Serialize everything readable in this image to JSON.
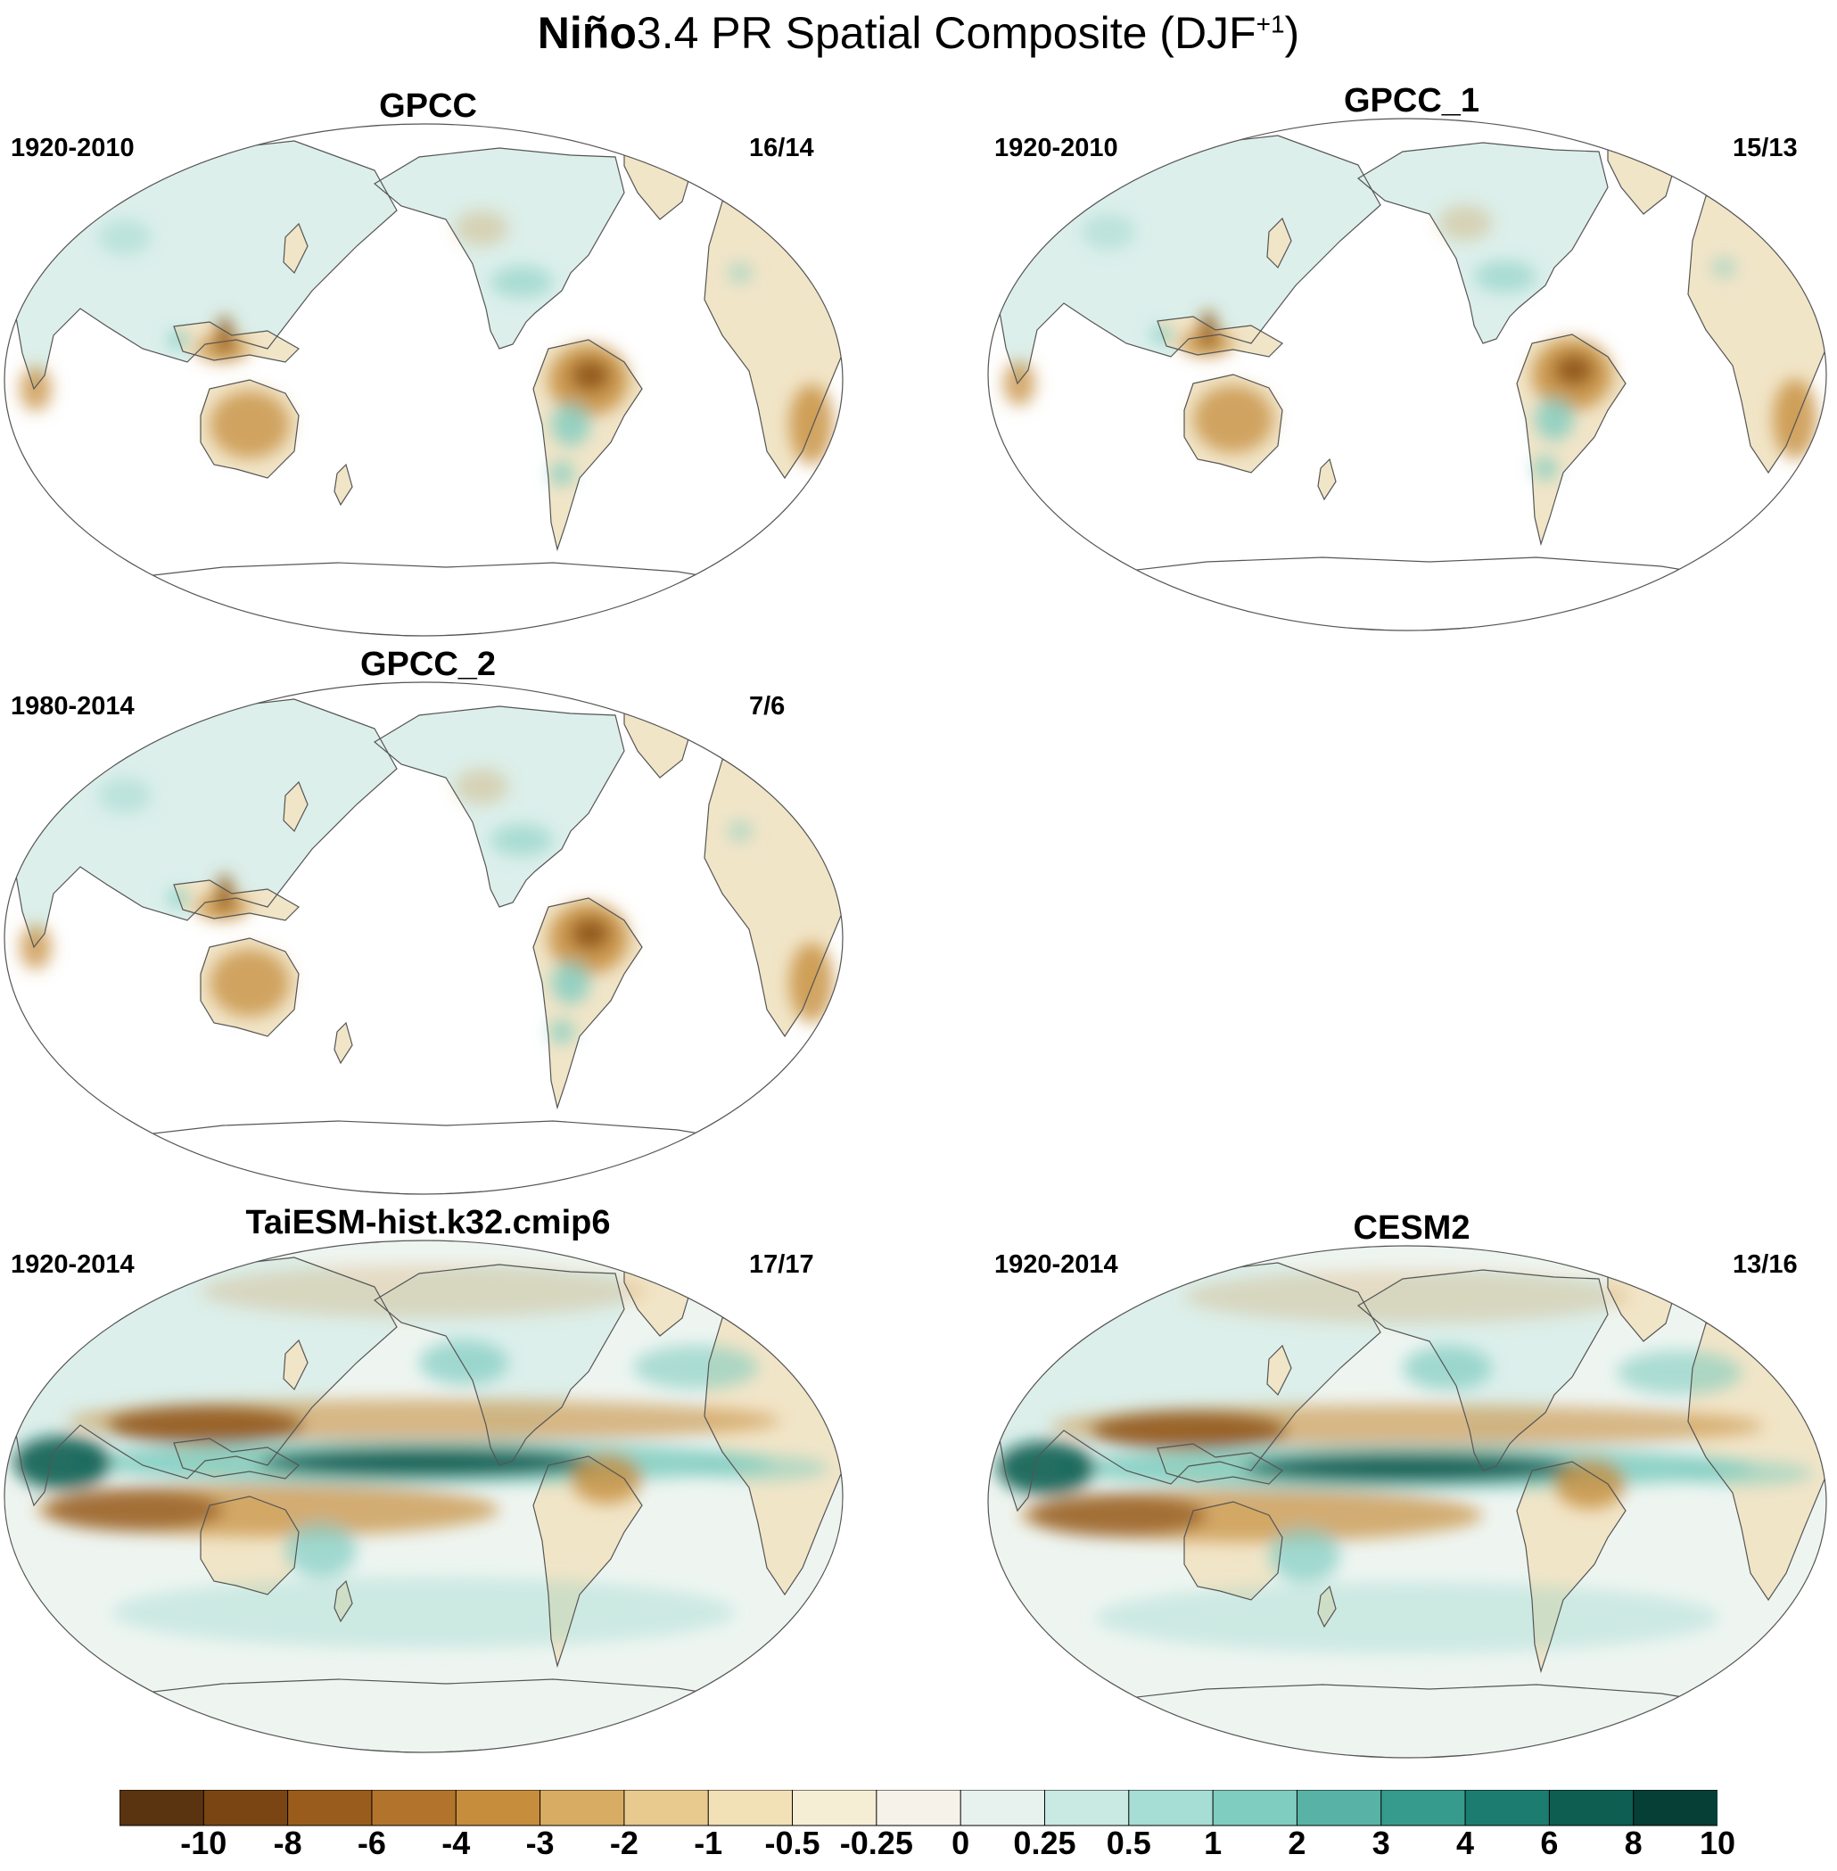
{
  "title": {
    "bold_part": "Niño",
    "regular_part": "3.4 PR Spatial Composite (DJF",
    "superscript": "+1",
    "closing": ")"
  },
  "panels": [
    {
      "id": "gpcc",
      "title": "GPCC",
      "period": "1920-2010",
      "count": "16/14",
      "style": "observed"
    },
    {
      "id": "gpcc-1",
      "title": "GPCC_1",
      "period": "1920-2010",
      "count": "15/13",
      "style": "observed"
    },
    {
      "id": "gpcc-2",
      "title": "GPCC_2",
      "period": "1980-2014",
      "count": "7/6",
      "style": "observed"
    },
    {
      "id": "taiesm",
      "title": "TaiESM-hist.k32.cmip6",
      "period": "1920-2014",
      "count": "17/17",
      "style": "model"
    },
    {
      "id": "cesm2",
      "title": "CESM2",
      "period": "1920-2014",
      "count": "13/16",
      "style": "model"
    }
  ],
  "colorbar": {
    "labels": [
      "-10",
      "-8",
      "-6",
      "-4",
      "-3",
      "-2",
      "-1",
      "-0.5",
      "-0.25",
      "0",
      "0.25",
      "0.5",
      "1",
      "2",
      "3",
      "4",
      "6",
      "8",
      "10"
    ],
    "colors": [
      "#5a3410",
      "#7a4512",
      "#9a5c1d",
      "#b2742d",
      "#c68d3c",
      "#d8ad63",
      "#e8c98e",
      "#f2e0b6",
      "#f6edd5",
      "#f6f2ea",
      "#e7f2ef",
      "#c9e9e3",
      "#a6ddd4",
      "#7fccc0",
      "#58b2a5",
      "#369a8d",
      "#1d7c70",
      "#0e5e52",
      "#063f35"
    ]
  },
  "map_colors": {
    "land_light_brown": "#f1e5c8",
    "land_light_teal": "#dcefeb",
    "dry_brown": "#c68d3c",
    "dry_dark": "#8f561a",
    "wet_teal": "#7fccc0",
    "wet_dark": "#0e5e52",
    "ocean_model": "#eef5f1",
    "coast": "#555555"
  }
}
